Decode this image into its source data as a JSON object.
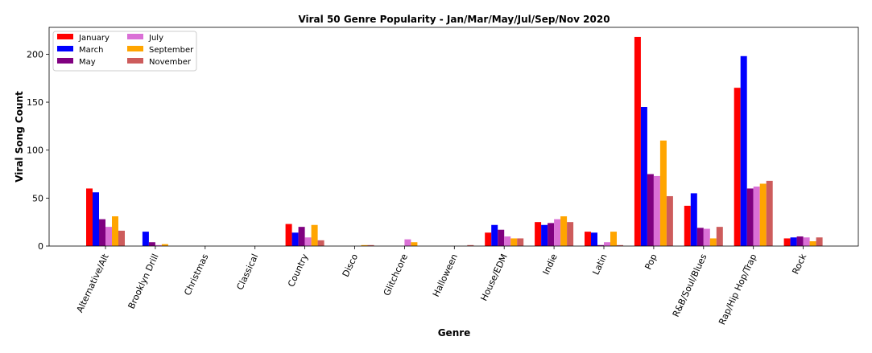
{
  "chart_data": {
    "type": "bar",
    "title": "Viral 50 Genre Popularity - Jan/Mar/May/Jul/Sep/Nov 2020",
    "xlabel": "Genre",
    "ylabel": "Viral Song Count",
    "ylim": [
      0,
      228
    ],
    "yticks": [
      0,
      50,
      100,
      150,
      200
    ],
    "grid": false,
    "legend_position": "top-left",
    "categories": [
      "Alternative/Alt",
      "Brooklyn Drill",
      "Christmas",
      "Classical",
      "Country",
      "Disco",
      "Glitchcore",
      "Halloween",
      "House/EDM",
      "Indie",
      "Latin",
      "Pop",
      "R&B/Soul/Blues",
      "Rap/Hip Hop/Trap",
      "Rock"
    ],
    "series": [
      {
        "name": "January",
        "color": "#ff0000",
        "values": [
          60,
          0,
          0,
          0,
          23,
          0,
          0,
          0,
          14,
          25,
          15,
          218,
          42,
          165,
          8
        ]
      },
      {
        "name": "March",
        "color": "#0000ff",
        "values": [
          56,
          15,
          0,
          0,
          14,
          0,
          0,
          0,
          22,
          22,
          14,
          145,
          55,
          198,
          9
        ]
      },
      {
        "name": "May",
        "color": "#800080",
        "values": [
          28,
          4,
          0,
          0,
          20,
          0,
          0,
          0,
          17,
          24,
          1,
          75,
          19,
          60,
          10
        ]
      },
      {
        "name": "July",
        "color": "#da70d6",
        "values": [
          20,
          1,
          0,
          0,
          9,
          0,
          7,
          0,
          10,
          28,
          4,
          73,
          18,
          62,
          9
        ]
      },
      {
        "name": "September",
        "color": "#ffa500",
        "values": [
          31,
          2,
          0,
          0,
          22,
          1,
          4,
          0,
          8,
          31,
          15,
          110,
          8,
          65,
          5
        ]
      },
      {
        "name": "November",
        "color": "#cd5c5c",
        "values": [
          16,
          0,
          0,
          0,
          6,
          1,
          0,
          1,
          8,
          25,
          1,
          52,
          20,
          68,
          9
        ]
      }
    ]
  }
}
